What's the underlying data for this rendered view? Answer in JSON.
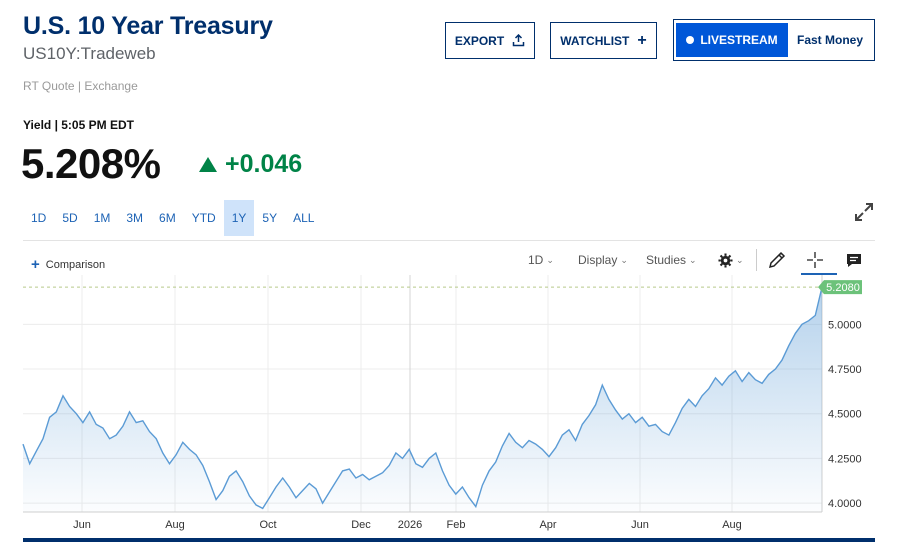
{
  "header": {
    "title": "U.S. 10 Year Treasury",
    "symbol": "US10Y:Tradeweb",
    "meta": "RT Quote | Exchange"
  },
  "actions": {
    "export_label": "EXPORT",
    "watchlist_label": "WATCHLIST",
    "livestream_label": "LIVESTREAM",
    "fast_money_label": "Fast Money"
  },
  "quote": {
    "yield_label": "Yield | 5:05 PM EDT",
    "price": "5.208%",
    "change": "+0.046",
    "direction": "up"
  },
  "ranges": [
    "1D",
    "5D",
    "1M",
    "3M",
    "6M",
    "YTD",
    "1Y",
    "5Y",
    "ALL"
  ],
  "active_range": "1Y",
  "toolbar": {
    "comparison_label": "Comparison",
    "interval_label": "1D",
    "display_label": "Display",
    "studies_label": "Studies"
  },
  "icons": [
    "upload-icon",
    "plus-icon",
    "live-dot-icon",
    "expand-icon",
    "gear-icon",
    "pencil-icon",
    "crosshair-icon",
    "comment-icon"
  ],
  "colors": {
    "brand_navy": "#002f6c",
    "live_blue": "#0057d8",
    "up_green": "#008347",
    "line_blue": "#5b9bd5",
    "last_price_label": "#6cc27a"
  },
  "chart_data": {
    "type": "area",
    "title": "",
    "xlabel": "",
    "ylabel": "",
    "x_ticks": [
      "Jun",
      "Aug",
      "Oct",
      "Dec",
      "2026",
      "Feb",
      "Apr",
      "Jun",
      "Aug"
    ],
    "y_ticks": [
      "4.0000",
      "4.2500",
      "4.5000",
      "4.7500",
      "5.0000"
    ],
    "ylim": [
      3.95,
      5.22
    ],
    "last_value_label": "5.2080",
    "last_value": 5.208,
    "grid": true,
    "series": [
      {
        "values": [
          4.33,
          4.22,
          4.29,
          4.36,
          4.48,
          4.51,
          4.6,
          4.54,
          4.5,
          4.45,
          4.51,
          4.44,
          4.42,
          4.36,
          4.38,
          4.43,
          4.51,
          4.45,
          4.46,
          4.4,
          4.36,
          4.28,
          4.22,
          4.27,
          4.34,
          4.3,
          4.27,
          4.21,
          4.12,
          4.02,
          4.07,
          4.15,
          4.18,
          4.12,
          4.04,
          3.99,
          3.97,
          4.03,
          4.09,
          4.14,
          4.09,
          4.03,
          4.07,
          4.11,
          4.08,
          4.0,
          4.06,
          4.12,
          4.18,
          4.19,
          4.14,
          4.16,
          4.13,
          4.15,
          4.17,
          4.21,
          4.28,
          4.25,
          4.3,
          4.22,
          4.2,
          4.25,
          4.28,
          4.18,
          4.1,
          4.05,
          4.09,
          4.03,
          3.98,
          4.1,
          4.18,
          4.23,
          4.32,
          4.39,
          4.34,
          4.31,
          4.35,
          4.33,
          4.3,
          4.26,
          4.31,
          4.38,
          4.41,
          4.35,
          4.44,
          4.49,
          4.55,
          4.66,
          4.58,
          4.52,
          4.47,
          4.5,
          4.45,
          4.48,
          4.43,
          4.44,
          4.4,
          4.38,
          4.45,
          4.53,
          4.58,
          4.54,
          4.6,
          4.64,
          4.7,
          4.66,
          4.71,
          4.74,
          4.68,
          4.73,
          4.69,
          4.67,
          4.72,
          4.75,
          4.8,
          4.88,
          4.95,
          5.0,
          5.02,
          5.05,
          5.208
        ]
      }
    ]
  }
}
